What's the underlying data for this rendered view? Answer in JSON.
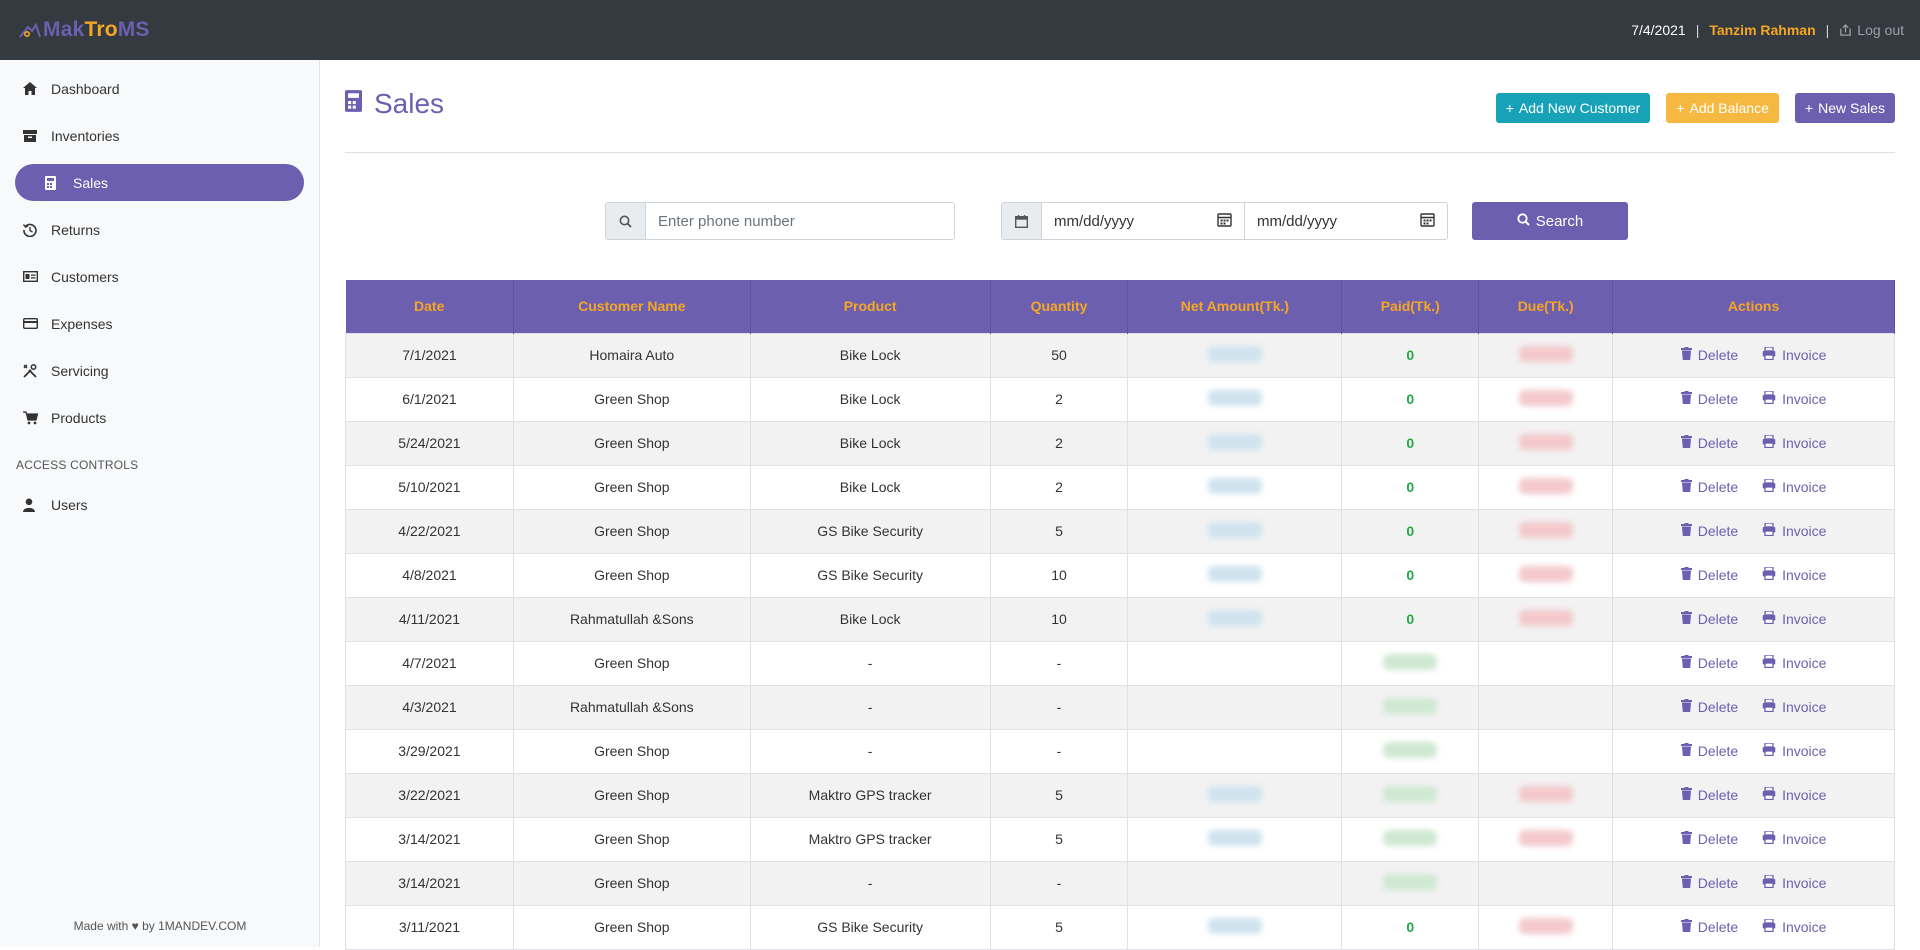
{
  "header": {
    "logo": {
      "part1": "Mak",
      "part2": "Tro",
      "part3": "MS"
    },
    "date": "7/4/2021",
    "separator": "|",
    "user": "Tanzim Rahman",
    "logout": "Log out"
  },
  "sidebar": {
    "items": [
      {
        "label": "Dashboard",
        "icon": "home-icon"
      },
      {
        "label": "Inventories",
        "icon": "box-icon"
      },
      {
        "label": "Sales",
        "icon": "calculator-icon",
        "active": true
      },
      {
        "label": "Returns",
        "icon": "history-icon"
      },
      {
        "label": "Customers",
        "icon": "id-card-icon"
      },
      {
        "label": "Expenses",
        "icon": "credit-card-icon"
      },
      {
        "label": "Servicing",
        "icon": "tools-icon"
      },
      {
        "label": "Products",
        "icon": "cart-icon"
      }
    ],
    "section_label": "ACCESS CONTROLS",
    "access_items": [
      {
        "label": "Users",
        "icon": "user-icon"
      }
    ],
    "footer": "Made with ♥ by 1MANDEV.COM"
  },
  "page": {
    "title": "Sales",
    "buttons": {
      "add_customer": "Add New Customer",
      "add_balance": "Add Balance",
      "new_sales": "New Sales"
    }
  },
  "search": {
    "phone_placeholder": "Enter phone number",
    "date_from": "mm/dd/yyyy",
    "date_to": "mm/dd/yyyy",
    "button": "Search"
  },
  "table": {
    "columns": [
      "Date",
      "Customer Name",
      "Product",
      "Quantity",
      "Net Amount(Tk.)",
      "Paid(Tk.)",
      "Due(Tk.)",
      "Actions"
    ],
    "delete_label": "Delete",
    "invoice_label": "Invoice",
    "rows": [
      {
        "date": "7/1/2021",
        "customer": "Homaira Auto",
        "product": "Bike Lock",
        "quantity": "50",
        "paid": "0"
      },
      {
        "date": "6/1/2021",
        "customer": "Green Shop",
        "product": "Bike Lock",
        "quantity": "2",
        "paid": "0"
      },
      {
        "date": "5/24/2021",
        "customer": "Green Shop",
        "product": "Bike Lock",
        "quantity": "2",
        "paid": "0"
      },
      {
        "date": "5/10/2021",
        "customer": "Green Shop",
        "product": "Bike Lock",
        "quantity": "2",
        "paid": "0"
      },
      {
        "date": "4/22/2021",
        "customer": "Green Shop",
        "product": "GS Bike Security",
        "quantity": "5",
        "paid": "0"
      },
      {
        "date": "4/8/2021",
        "customer": "Green Shop",
        "product": "GS Bike Security",
        "quantity": "10",
        "paid": "0"
      },
      {
        "date": "4/11/2021",
        "customer": "Rahmatullah &Sons",
        "product": "Bike Lock",
        "quantity": "10",
        "paid": "0"
      },
      {
        "date": "4/7/2021",
        "customer": "Green Shop",
        "product": "-",
        "quantity": "-",
        "paid": ""
      },
      {
        "date": "4/3/2021",
        "customer": "Rahmatullah &Sons",
        "product": "-",
        "quantity": "-",
        "paid": ""
      },
      {
        "date": "3/29/2021",
        "customer": "Green Shop",
        "product": "-",
        "quantity": "-",
        "paid": ""
      },
      {
        "date": "3/22/2021",
        "customer": "Green Shop",
        "product": "Maktro GPS tracker",
        "quantity": "5",
        "paid": ""
      },
      {
        "date": "3/14/2021",
        "customer": "Green Shop",
        "product": "Maktro GPS tracker",
        "quantity": "5",
        "paid": ""
      },
      {
        "date": "3/14/2021",
        "customer": "Green Shop",
        "product": "-",
        "quantity": "-",
        "paid": ""
      },
      {
        "date": "3/11/2021",
        "customer": "Green Shop",
        "product": "GS Bike Security",
        "quantity": "5",
        "paid": "0"
      }
    ]
  },
  "colors": {
    "brand_purple": "#6c5fb0",
    "accent_orange": "#f5a623",
    "teal": "#17a2b8",
    "topbar": "#343a40"
  }
}
